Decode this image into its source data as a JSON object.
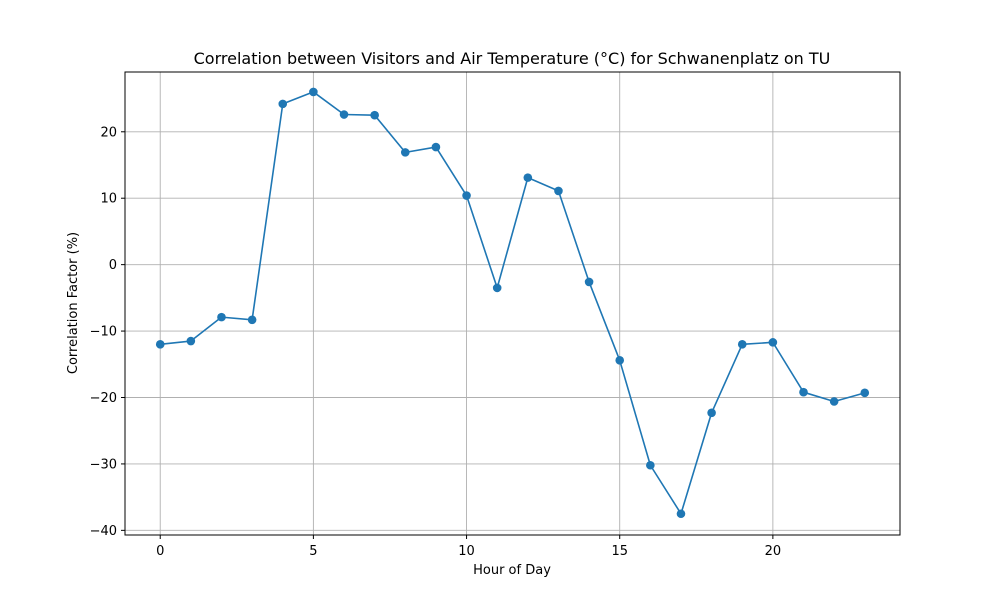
{
  "chart_data": {
    "type": "line",
    "title": "Correlation between Visitors and Air Temperature (°C) for Schwanenplatz on TU",
    "xlabel": "Hour of Day",
    "ylabel": "Correlation Factor (%)",
    "xlim": [
      -1.15,
      24.15
    ],
    "ylim": [
      -40.7,
      29.0
    ],
    "xticks": [
      0,
      5,
      10,
      15,
      20
    ],
    "yticks": [
      -40,
      -30,
      -20,
      -10,
      0,
      10,
      20
    ],
    "xtick_labels": [
      "0",
      "5",
      "10",
      "15",
      "20"
    ],
    "ytick_labels": [
      "−40",
      "−30",
      "−20",
      "−10",
      "0",
      "10",
      "20"
    ],
    "grid": true,
    "series": [
      {
        "color": "#1f77b4",
        "marker": "circle",
        "x": [
          0,
          1,
          2,
          3,
          4,
          5,
          6,
          7,
          8,
          9,
          10,
          11,
          12,
          13,
          14,
          15,
          16,
          17,
          18,
          19,
          20,
          21,
          22,
          23
        ],
        "y": [
          -12.0,
          -11.5,
          -7.9,
          -8.3,
          24.2,
          26.0,
          22.6,
          22.5,
          16.9,
          17.7,
          10.4,
          -3.5,
          13.1,
          11.1,
          -2.6,
          -14.4,
          -30.2,
          -37.5,
          -22.3,
          -12.0,
          -11.7,
          -19.2,
          -20.6,
          -19.3
        ]
      }
    ]
  }
}
